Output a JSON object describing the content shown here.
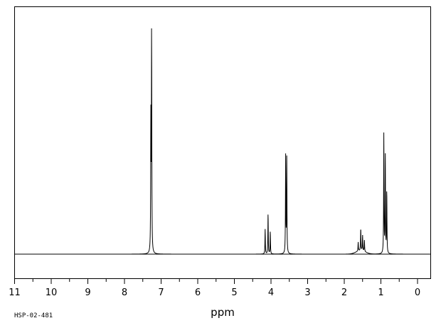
{
  "chart_data": {
    "type": "line",
    "xlabel": "ppm",
    "ylabel": "",
    "title": "",
    "sample_id": "HSP-02-481",
    "xlim": [
      11.2,
      -0.4
    ],
    "ylim": [
      -0.11,
      1.0
    ],
    "x_reversed": true,
    "grid": false,
    "tick_labels": [
      "11",
      "10",
      "9",
      "8",
      "7",
      "6",
      "5",
      "4",
      "3",
      "2",
      "1",
      "0"
    ],
    "ticks": [
      11,
      10,
      9,
      8,
      7,
      6,
      5,
      4,
      3,
      2,
      1,
      0
    ],
    "peaks": [
      {
        "ppm": 7.26,
        "intensity": 1.0
      },
      {
        "ppm": 7.28,
        "intensity": 0.58
      },
      {
        "ppm": 4.16,
        "intensity": 0.11
      },
      {
        "ppm": 4.08,
        "intensity": 0.18
      },
      {
        "ppm": 4.02,
        "intensity": 0.1
      },
      {
        "ppm": 3.6,
        "intensity": 0.43
      },
      {
        "ppm": 3.57,
        "intensity": 0.42
      },
      {
        "ppm": 1.62,
        "intensity": 0.04
      },
      {
        "ppm": 1.55,
        "intensity": 0.1
      },
      {
        "ppm": 1.5,
        "intensity": 0.07
      },
      {
        "ppm": 1.45,
        "intensity": 0.05
      },
      {
        "ppm": 0.92,
        "intensity": 0.53
      },
      {
        "ppm": 0.88,
        "intensity": 0.44
      },
      {
        "ppm": 0.84,
        "intensity": 0.28
      }
    ]
  }
}
